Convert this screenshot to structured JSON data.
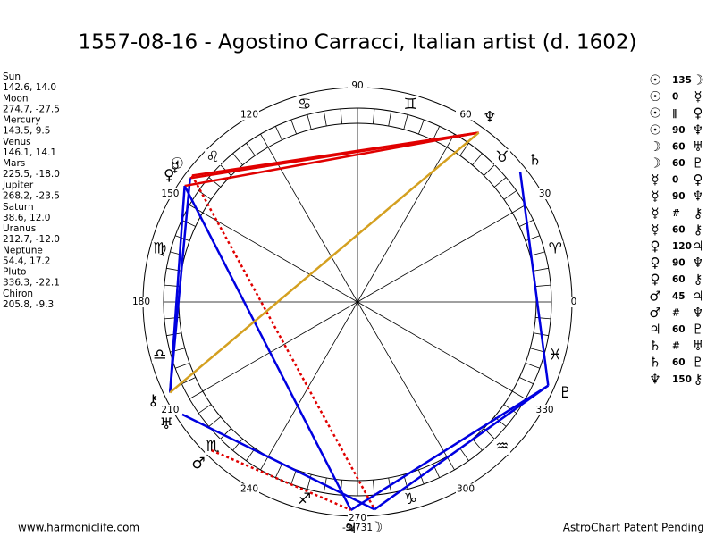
{
  "title": "1557-08-16 - Agostino Carracci, Italian artist (d. 1602)",
  "planets": [
    {
      "name": "Sun",
      "glyph": "☉",
      "position": "142.6, 14.0"
    },
    {
      "name": "Moon",
      "glyph": "☽",
      "position": "274.7, -27.5"
    },
    {
      "name": "Mercury",
      "glyph": "☿",
      "position": "143.5, 9.5"
    },
    {
      "name": "Venus",
      "glyph": "♀",
      "position": "146.1, 14.1"
    },
    {
      "name": "Mars",
      "glyph": "♂",
      "position": "225.5, -18.0"
    },
    {
      "name": "Jupiter",
      "glyph": "♃",
      "position": "268.2, -23.5"
    },
    {
      "name": "Saturn",
      "glyph": "♄",
      "position": "38.6, 12.0"
    },
    {
      "name": "Uranus",
      "glyph": "♅",
      "position": "212.7, -12.0"
    },
    {
      "name": "Neptune",
      "glyph": "♆",
      "position": "54.4, 17.2"
    },
    {
      "name": "Pluto",
      "glyph": "♇",
      "position": "336.3, -22.1"
    },
    {
      "name": "Chiron",
      "glyph": "⚷",
      "position": "205.8, -9.3"
    }
  ],
  "aspects": [
    {
      "from": "☉",
      "aspect": "135",
      "to": "☽",
      "line": "#e00000",
      "dash": true
    },
    {
      "from": "☉",
      "aspect": "0",
      "to": "☿",
      "line": null,
      "dash": false
    },
    {
      "from": "☉",
      "aspect": "∥",
      "to": "♀",
      "line": null,
      "dash": false
    },
    {
      "from": "☉",
      "aspect": "90",
      "to": "♆",
      "line": "#e00000",
      "dash": false
    },
    {
      "from": "☽",
      "aspect": "60",
      "to": "♅",
      "line": "#0000e0",
      "dash": false
    },
    {
      "from": "☽",
      "aspect": "60",
      "to": "♇",
      "line": "#0000e0",
      "dash": false
    },
    {
      "from": "☿",
      "aspect": "0",
      "to": "♀",
      "line": null,
      "dash": false
    },
    {
      "from": "☿",
      "aspect": "90",
      "to": "♆",
      "line": "#e00000",
      "dash": false
    },
    {
      "from": "☿",
      "aspect": "#",
      "to": "⚷",
      "line": null,
      "dash": false
    },
    {
      "from": "☿",
      "aspect": "60",
      "to": "⚷",
      "line": "#0000e0",
      "dash": false
    },
    {
      "from": "♀",
      "aspect": "120",
      "to": "♃",
      "line": "#0000e0",
      "dash": false
    },
    {
      "from": "♀",
      "aspect": "90",
      "to": "♆",
      "line": "#e00000",
      "dash": false
    },
    {
      "from": "♀",
      "aspect": "60",
      "to": "⚷",
      "line": "#0000e0",
      "dash": false
    },
    {
      "from": "♂",
      "aspect": "45",
      "to": "♃",
      "line": "#e00000",
      "dash": true
    },
    {
      "from": "♂",
      "aspect": "#",
      "to": "♆",
      "line": null,
      "dash": false
    },
    {
      "from": "♃",
      "aspect": "60",
      "to": "♇",
      "line": "#0000e0",
      "dash": false
    },
    {
      "from": "♄",
      "aspect": "#",
      "to": "♅",
      "line": null,
      "dash": false
    },
    {
      "from": "♄",
      "aspect": "60",
      "to": "♇",
      "line": "#0000e0",
      "dash": false
    },
    {
      "from": "♆",
      "aspect": "150",
      "to": "⚷",
      "line": "#d4a020",
      "dash": false
    }
  ],
  "signs": [
    "♈",
    "♉",
    "♊",
    "♋",
    "♌",
    "♍",
    "♎",
    "♏",
    "♐",
    "♑",
    "♒",
    "♓"
  ],
  "degree_labels": [
    0,
    30,
    60,
    90,
    120,
    150,
    180,
    210,
    240,
    270,
    300,
    330
  ],
  "chart_code": "-9/731",
  "footer_left": "www.harmoniclife.com",
  "footer_right": "AstroChart Patent Pending"
}
